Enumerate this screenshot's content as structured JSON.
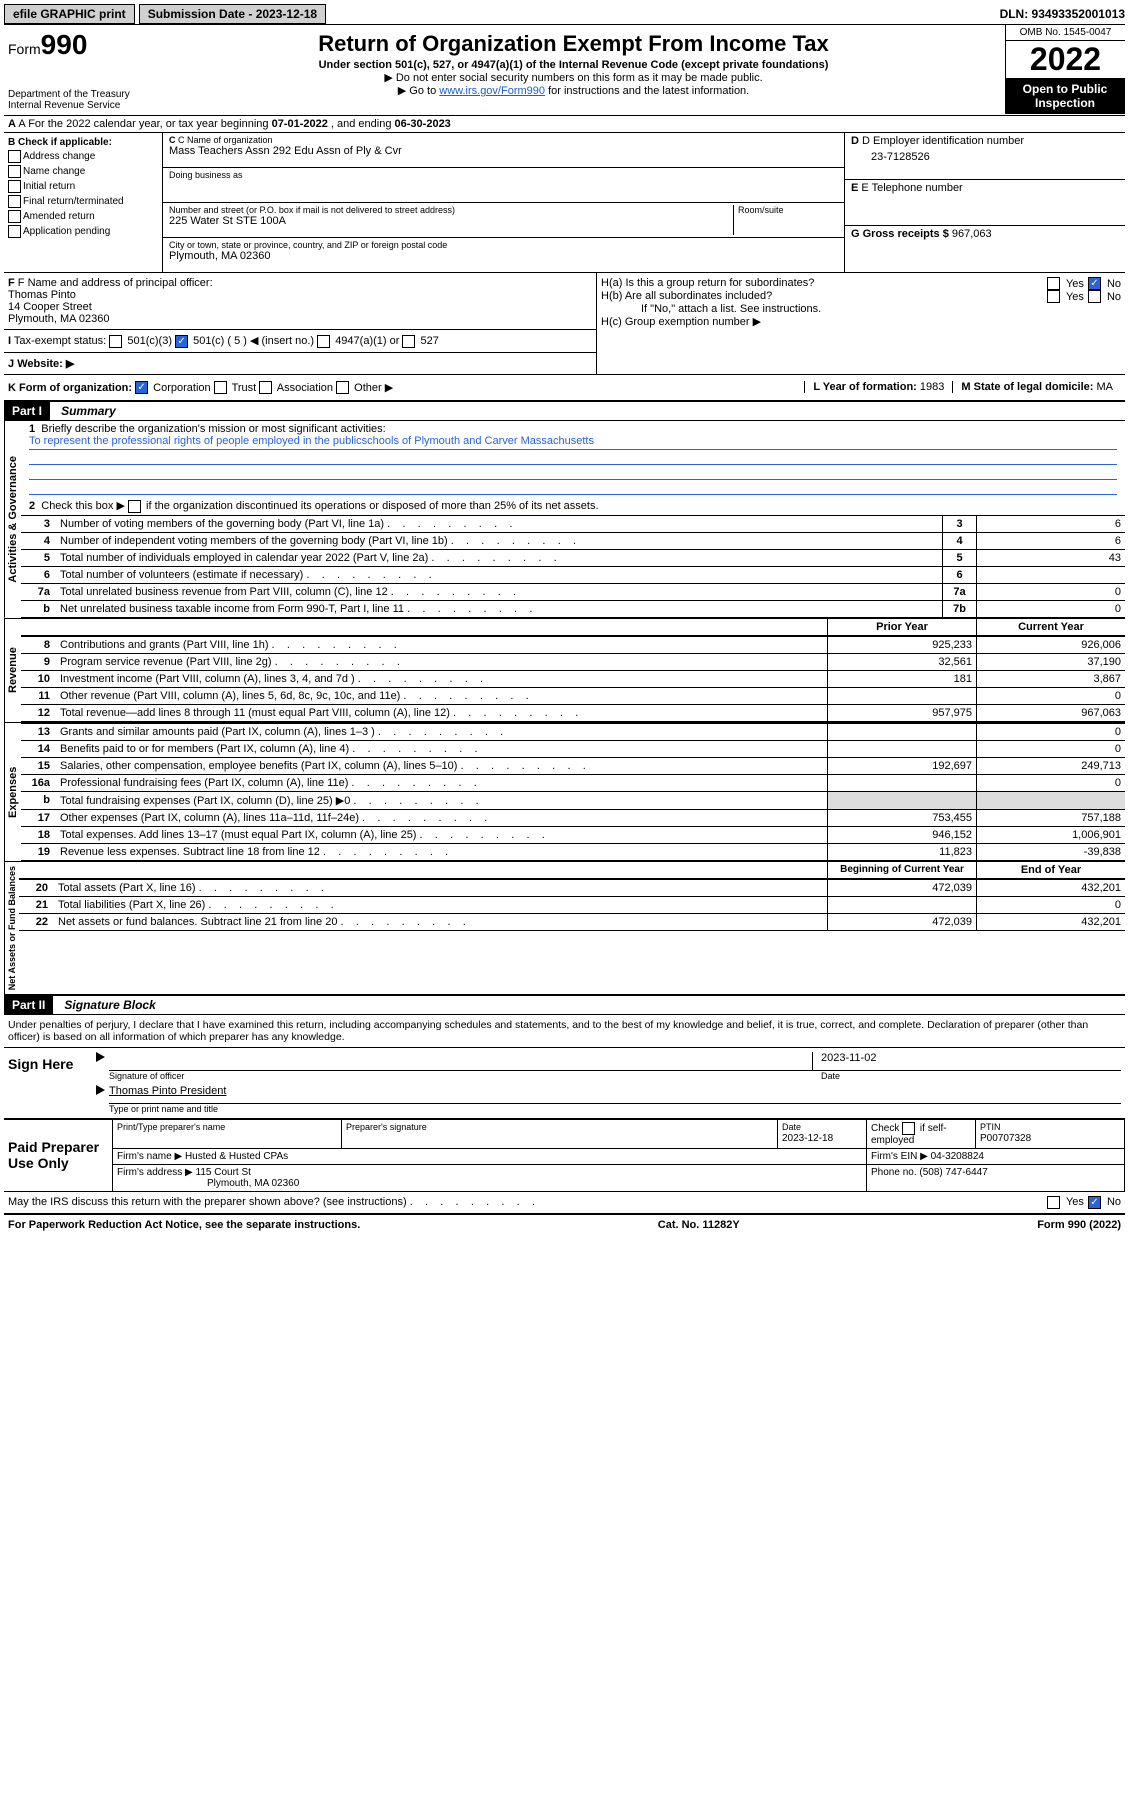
{
  "top": {
    "efile": "efile GRAPHIC print",
    "submission_label": "Submission Date - 2023-12-18",
    "dln": "DLN: 93493352001013"
  },
  "header": {
    "form_prefix": "Form",
    "form_num": "990",
    "dept": "Department of the Treasury",
    "irs": "Internal Revenue Service",
    "title": "Return of Organization Exempt From Income Tax",
    "subtitle": "Under section 501(c), 527, or 4947(a)(1) of the Internal Revenue Code (except private foundations)",
    "note1": "▶ Do not enter social security numbers on this form as it may be made public.",
    "note2_pre": "▶ Go to ",
    "note2_link": "www.irs.gov/Form990",
    "note2_post": " for instructions and the latest information.",
    "omb": "OMB No. 1545-0047",
    "year": "2022",
    "inspection": "Open to Public Inspection"
  },
  "row_a": {
    "prefix": "A For the 2022 calendar year, or tax year beginning ",
    "begin": "07-01-2022",
    "mid": " , and ending ",
    "end": "06-30-2023"
  },
  "col_b": {
    "title": "B Check if applicable:",
    "items": [
      "Address change",
      "Name change",
      "Initial return",
      "Final return/terminated",
      "Amended return",
      "Application pending"
    ]
  },
  "col_c": {
    "name_lbl": "C Name of organization",
    "name": "Mass Teachers Assn 292 Edu Assn of Ply & Cvr",
    "dba_lbl": "Doing business as",
    "dba": "",
    "addr_lbl": "Number and street (or P.O. box if mail is not delivered to street address)",
    "room_lbl": "Room/suite",
    "addr": "225 Water St STE 100A",
    "city_lbl": "City or town, state or province, country, and ZIP or foreign postal code",
    "city": "Plymouth, MA  02360"
  },
  "col_de": {
    "d_lbl": "D Employer identification number",
    "d_val": "23-7128526",
    "e_lbl": "E Telephone number",
    "e_val": "",
    "g_lbl": "G Gross receipts $",
    "g_val": "967,063"
  },
  "f": {
    "lbl": "F Name and address of principal officer:",
    "name": "Thomas Pinto",
    "addr1": "14 Cooper Street",
    "addr2": "Plymouth, MA  02360"
  },
  "i_label": "Tax-exempt status:",
  "i_opts": [
    "501(c)(3)",
    "501(c) ( 5 ) ◀ (insert no.)",
    "4947(a)(1) or",
    "527"
  ],
  "j_label": "Website: ▶",
  "h": {
    "a_lbl": "H(a)  Is this a group return for subordinates?",
    "b_lbl": "H(b)  Are all subordinates included?",
    "b_note": "If \"No,\" attach a list. See instructions.",
    "c_lbl": "H(c)  Group exemption number ▶"
  },
  "k": {
    "lbl": "K Form of organization:",
    "opts": [
      "Corporation",
      "Trust",
      "Association",
      "Other ▶"
    ],
    "l_lbl": "L Year of formation:",
    "l_val": "1983",
    "m_lbl": "M State of legal domicile:",
    "m_val": "MA"
  },
  "part1": {
    "header": "Part I",
    "title": "Summary",
    "mission_lbl": "Briefly describe the organization's mission or most significant activities:",
    "mission": "To represent the professional rights of people employed in the publicschools of Plymouth and Carver Massachusetts",
    "check2": "Check this box ▶",
    "check2_txt": " if the organization discontinued its operations or disposed of more than 25% of its net assets.",
    "sections": {
      "governance": "Activities & Governance",
      "revenue": "Revenue",
      "expenses": "Expenses",
      "net": "Net Assets or Fund Balances"
    },
    "gov_rows": [
      {
        "n": "3",
        "txt": "Number of voting members of the governing body (Part VI, line 1a)",
        "val": "6"
      },
      {
        "n": "4",
        "txt": "Number of independent voting members of the governing body (Part VI, line 1b)",
        "val": "6"
      },
      {
        "n": "5",
        "txt": "Total number of individuals employed in calendar year 2022 (Part V, line 2a)",
        "val": "43"
      },
      {
        "n": "6",
        "txt": "Total number of volunteers (estimate if necessary)",
        "val": ""
      },
      {
        "n": "7a",
        "txt": "Total unrelated business revenue from Part VIII, column (C), line 12",
        "val": "0"
      },
      {
        "n": "b",
        "txt": "Net unrelated business taxable income from Form 990-T, Part I, line 11",
        "col": "7b",
        "val": "0"
      }
    ],
    "col_headers": {
      "prior": "Prior Year",
      "current": "Current Year"
    },
    "rev_rows": [
      {
        "n": "8",
        "txt": "Contributions and grants (Part VIII, line 1h)",
        "p": "925,233",
        "c": "926,006"
      },
      {
        "n": "9",
        "txt": "Program service revenue (Part VIII, line 2g)",
        "p": "32,561",
        "c": "37,190"
      },
      {
        "n": "10",
        "txt": "Investment income (Part VIII, column (A), lines 3, 4, and 7d )",
        "p": "181",
        "c": "3,867"
      },
      {
        "n": "11",
        "txt": "Other revenue (Part VIII, column (A), lines 5, 6d, 8c, 9c, 10c, and 11e)",
        "p": "",
        "c": "0"
      },
      {
        "n": "12",
        "txt": "Total revenue—add lines 8 through 11 (must equal Part VIII, column (A), line 12)",
        "p": "957,975",
        "c": "967,063"
      }
    ],
    "exp_rows": [
      {
        "n": "13",
        "txt": "Grants and similar amounts paid (Part IX, column (A), lines 1–3 )",
        "p": "",
        "c": "0"
      },
      {
        "n": "14",
        "txt": "Benefits paid to or for members (Part IX, column (A), line 4)",
        "p": "",
        "c": "0"
      },
      {
        "n": "15",
        "txt": "Salaries, other compensation, employee benefits (Part IX, column (A), lines 5–10)",
        "p": "192,697",
        "c": "249,713"
      },
      {
        "n": "16a",
        "txt": "Professional fundraising fees (Part IX, column (A), line 11e)",
        "p": "",
        "c": "0"
      },
      {
        "n": "b",
        "txt": "Total fundraising expenses (Part IX, column (D), line 25) ▶0",
        "p": "shade",
        "c": "shade"
      },
      {
        "n": "17",
        "txt": "Other expenses (Part IX, column (A), lines 11a–11d, 11f–24e)",
        "p": "753,455",
        "c": "757,188"
      },
      {
        "n": "18",
        "txt": "Total expenses. Add lines 13–17 (must equal Part IX, column (A), line 25)",
        "p": "946,152",
        "c": "1,006,901"
      },
      {
        "n": "19",
        "txt": "Revenue less expenses. Subtract line 18 from line 12",
        "p": "11,823",
        "c": "-39,838"
      }
    ],
    "net_headers": {
      "b": "Beginning of Current Year",
      "e": "End of Year"
    },
    "net_rows": [
      {
        "n": "20",
        "txt": "Total assets (Part X, line 16)",
        "p": "472,039",
        "c": "432,201"
      },
      {
        "n": "21",
        "txt": "Total liabilities (Part X, line 26)",
        "p": "",
        "c": "0"
      },
      {
        "n": "22",
        "txt": "Net assets or fund balances. Subtract line 21 from line 20",
        "p": "472,039",
        "c": "432,201"
      }
    ]
  },
  "part2": {
    "header": "Part II",
    "title": "Signature Block",
    "declaration": "Under penalties of perjury, I declare that I have examined this return, including accompanying schedules and statements, and to the best of my knowledge and belief, it is true, correct, and complete. Declaration of preparer (other than officer) is based on all information of which preparer has any knowledge.",
    "sign_here": "Sign Here",
    "sig_officer": "Signature of officer",
    "date_lbl": "Date",
    "date_val": "2023-11-02",
    "officer_name": "Thomas Pinto President",
    "type_name": "Type or print name and title",
    "paid": "Paid Preparer Use Only",
    "prep_name_lbl": "Print/Type preparer's name",
    "prep_sig_lbl": "Preparer's signature",
    "prep_date_lbl": "Date",
    "prep_date": "2023-12-18",
    "check_lbl": "Check",
    "self_emp": "if self-employed",
    "ptin_lbl": "PTIN",
    "ptin": "P00707328",
    "firm_name_lbl": "Firm's name    ▶",
    "firm_name": "Husted & Husted CPAs",
    "firm_ein_lbl": "Firm's EIN ▶",
    "firm_ein": "04-3208824",
    "firm_addr_lbl": "Firm's address ▶",
    "firm_addr1": "115 Court St",
    "firm_addr2": "Plymouth, MA  02360",
    "phone_lbl": "Phone no.",
    "phone": "(508) 747-6447",
    "discuss": "May the IRS discuss this return with the preparer shown above? (see instructions)"
  },
  "footer": {
    "left": "For Paperwork Reduction Act Notice, see the separate instructions.",
    "center": "Cat. No. 11282Y",
    "right": "Form 990 (2022)"
  }
}
